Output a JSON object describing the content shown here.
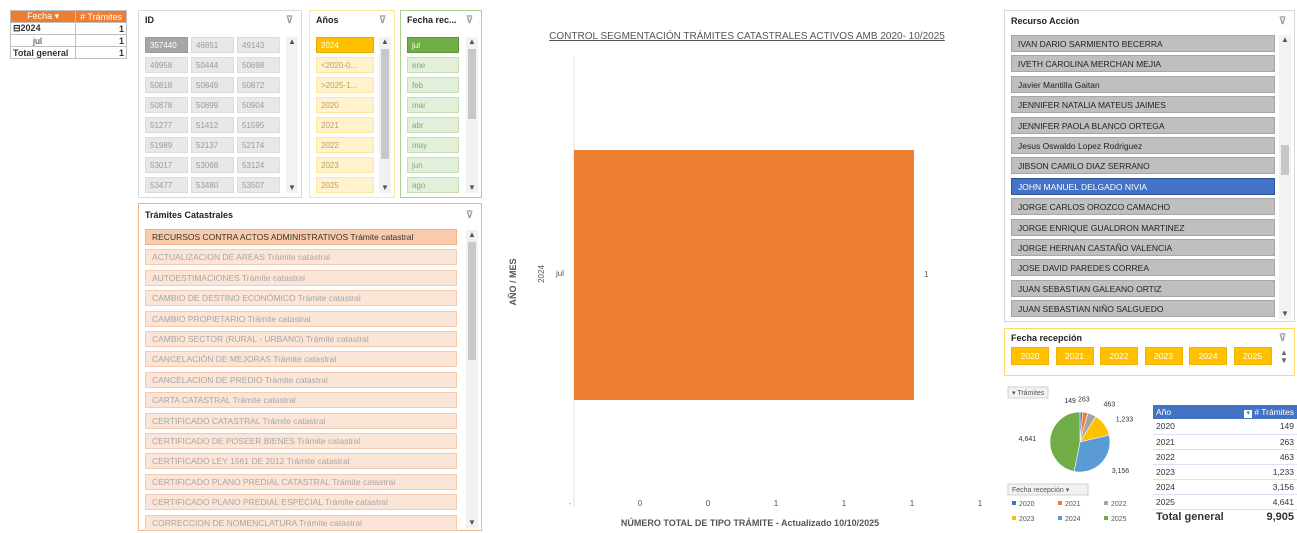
{
  "pivot": {
    "headers": [
      "Fecha",
      "# Trámites"
    ],
    "rows": [
      {
        "label": "2024",
        "value": "1"
      },
      {
        "label": "jul",
        "value": "1"
      },
      {
        "label": "Total general",
        "value": "1"
      }
    ]
  },
  "id_slicer": {
    "title": "ID",
    "items": [
      "357440",
      "46851",
      "49143",
      "49958",
      "50444",
      "50698",
      "50818",
      "50849",
      "50872",
      "50878",
      "50899",
      "50904",
      "51277",
      "51412",
      "51595",
      "51989",
      "52137",
      "52174",
      "53017",
      "53068",
      "53124",
      "53477",
      "53480",
      "53507"
    ]
  },
  "anos_slicer": {
    "title": "Años",
    "items": [
      "2024",
      "<2020-0...",
      ">2025-1...",
      "2020",
      "2021",
      "2022",
      "2023",
      "2025"
    ]
  },
  "fecha_slicer": {
    "title": "Fecha rec...",
    "items": [
      "jul",
      "ene",
      "feb",
      "mar",
      "abr",
      "may",
      "jun",
      "ago"
    ]
  },
  "tramites_slicer": {
    "title": "Trámites Catastrales",
    "items": [
      "RECURSOS CONTRA ACTOS ADMINISTRATIVOS Trámite catastral",
      "ACTUALIZACION DE AREAS Trámite catastral",
      "AUTOESTIMACIONES Trámite catastral",
      "CAMBIO DE DESTINO ECONÓMICO Trámite catastral",
      "CAMBIO PROPIETARIO Trámite catastral",
      "CAMBIO SECTOR (RURAL - URBANO) Trámite catastral",
      "CANCELACIÓN DE MEJORAS Trámite catastral",
      "CANCELACION DE PREDIO Trámite catastral",
      "CARTA CATASTRAL Trámite catastral",
      "CERTIFICADO CATASTRAL Trámite catastral",
      "CERTIFICADO DE POSEER BIENES Trámite catastral",
      "CERTIFICADO LEY 1561 DE 2012 Trámite catastral",
      "CERTIFICADO PLANO PREDIAL CATASTRAL Trámite catastral",
      "CERTIFICADO PLANO PREDIAL ESPECIAL Trámite catastral",
      "CORRECCION DE NOMENCLATURA Trámite catastral"
    ]
  },
  "chart_data": [
    {
      "type": "bar",
      "orientation": "horizontal",
      "title": "CONTROL SEGMENTACIÓN TRÁMITES CATASTRALES ACTIVOS AMB 2020- 10/2025",
      "xlabel": "NÚMERO TOTAL DE TIPO TRÁMITE - Actualizado 10/10/2025",
      "ylabel": "AÑO / MES",
      "categories": [
        "2024 jul"
      ],
      "category_labels": {
        "year": "2024",
        "month": "jul"
      },
      "values": [
        1
      ],
      "data_labels": [
        "1"
      ],
      "x_ticks": [
        "0",
        "0",
        "1",
        "1",
        "1",
        "1"
      ],
      "color": "#ed7d31",
      "legend": "none"
    },
    {
      "type": "pie",
      "title": "",
      "field_button": "Trámites",
      "filter_button": "Fecha recepción",
      "labels": [
        "2020",
        "2021",
        "2022",
        "2023",
        "2024",
        "2025"
      ],
      "values": [
        149,
        263,
        463,
        1233,
        3156,
        4641
      ],
      "data_labels": [
        "149",
        "263",
        "463",
        "1,233",
        "3,156",
        "4,641"
      ],
      "colors": [
        "#4472c4",
        "#ed7d31",
        "#a5a5a5",
        "#ffc000",
        "#5b9bd5",
        "#70ad47"
      ],
      "legend": "bottom"
    }
  ],
  "recurso_slicer": {
    "title": "Recurso Acción",
    "items": [
      "IVAN DARIO SARMIENTO BECERRA",
      "IVETH CAROLINA MERCHAN MEJIA",
      "Javier Mantilla Gaitan",
      "JENNIFER NATALIA MATEUS JAIMES",
      "JENNIFER PAOLA BLANCO ORTEGA",
      "Jesus Oswaldo Lopez Rodriguez",
      "JIBSON CAMILO DIAZ SERRANO",
      "JOHN MANUEL DELGADO NIVIA",
      "JORGE CARLOS OROZCO CAMACHO",
      "JORGE ENRIQUE GUALDRON MARTINEZ",
      "JORGE HERNAN CASTAÑO VALENCIA",
      "JOSE DAVID PAREDES CORREA",
      "JUAN SEBASTIAN GALEANO ORTIZ",
      "JUAN SEBASTIAN NIÑO SALGUEDO"
    ],
    "selected_index": 7
  },
  "fecha_recepcion_slicer": {
    "title": "Fecha recepción",
    "items": [
      "2020",
      "2021",
      "2022",
      "2023",
      "2024",
      "2025"
    ]
  },
  "year_table": {
    "headers": [
      "Año",
      "# Trámites"
    ],
    "rows": [
      {
        "year": "2020",
        "count": "149"
      },
      {
        "year": "2021",
        "count": "263"
      },
      {
        "year": "2022",
        "count": "463"
      },
      {
        "year": "2023",
        "count": "1,233"
      },
      {
        "year": "2024",
        "count": "3,156"
      },
      {
        "year": "2025",
        "count": "4,641"
      }
    ],
    "total_label": "Total general",
    "total_value": "9,905"
  },
  "colors": {
    "orange": "#ed7d31",
    "blue": "#4472c4",
    "yellow": "#ffc000",
    "green": "#70ad47",
    "gray": "#a6a6a6"
  }
}
